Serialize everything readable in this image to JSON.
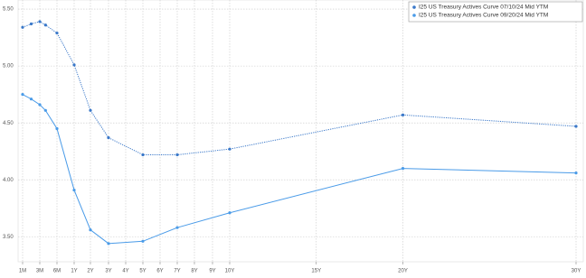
{
  "chart_data": {
    "type": "line",
    "categories": [
      "1M",
      "3M",
      "6M",
      "1Y",
      "2Y",
      "3Y",
      "4Y",
      "5Y",
      "6Y",
      "7Y",
      "8Y",
      "9Y",
      "10Y",
      "15Y",
      "20Y",
      "30Y"
    ],
    "series": [
      {
        "name": "I25 US Treasury Actives Curve 07/10/24 Mid YTM",
        "color": "#3a78c9",
        "dash": "dotted",
        "x": [
          "1M",
          "2M",
          "3M",
          "4M",
          "6M",
          "1Y",
          "2Y",
          "3Y",
          "5Y",
          "7Y",
          "10Y",
          "20Y",
          "30Y"
        ],
        "values": [
          5.34,
          5.37,
          5.39,
          5.36,
          5.29,
          5.01,
          4.61,
          4.37,
          4.22,
          4.22,
          4.27,
          4.57,
          4.47
        ]
      },
      {
        "name": "I25 US Treasury Actives Curve 09/20/24 Mid YTM",
        "color": "#4a9be8",
        "dash": "solid",
        "x": [
          "1M",
          "2M",
          "3M",
          "4M",
          "6M",
          "1Y",
          "2Y",
          "3Y",
          "5Y",
          "7Y",
          "10Y",
          "20Y",
          "30Y"
        ],
        "values": [
          4.75,
          4.71,
          4.66,
          4.61,
          4.45,
          3.91,
          3.56,
          3.44,
          3.46,
          3.58,
          3.71,
          4.1,
          4.06
        ]
      }
    ],
    "ylim": [
      3.28,
      5.58
    ],
    "yticks": [
      {
        "value": 3.5,
        "label": "3.50"
      },
      {
        "value": 4,
        "label": "4.00"
      },
      {
        "value": 4.5,
        "label": "4.50"
      },
      {
        "value": 5,
        "label": "5.00"
      },
      {
        "value": 5.5,
        "label": "5.50"
      }
    ],
    "grid": true,
    "legend": "top-right"
  }
}
